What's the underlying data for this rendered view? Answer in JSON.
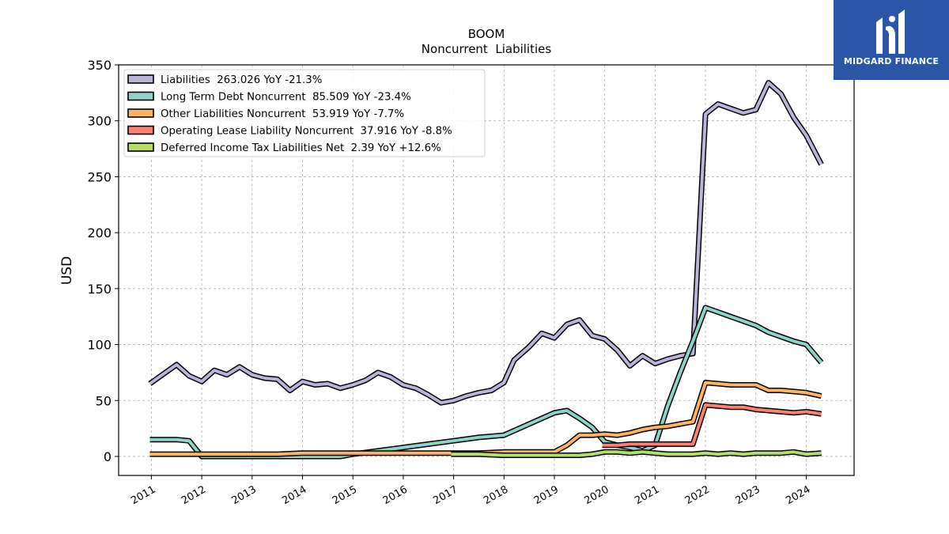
{
  "brand": {
    "name": "MIDGARD FINANCE",
    "bg_color": "#2b56a8"
  },
  "chart_data": {
    "type": "line",
    "title": "BOOM",
    "subtitle": "Noncurrent  Liabilities",
    "ylabel": "USD",
    "xlabel": "",
    "ylim": [
      -17,
      350
    ],
    "xlim": [
      2010.35,
      2024.95
    ],
    "yticks": [
      0,
      50,
      100,
      150,
      200,
      250,
      300,
      350
    ],
    "xticks": [
      2011,
      2012,
      2013,
      2014,
      2015,
      2016,
      2017,
      2018,
      2019,
      2020,
      2021,
      2022,
      2023,
      2024
    ],
    "grid": true,
    "legend_position": "top-left",
    "series": [
      {
        "name": "Liabilities  263.026 YoY -21.3%",
        "color": "#bcb3da",
        "points": [
          [
            2010.97,
            65
          ],
          [
            2011.25,
            74
          ],
          [
            2011.5,
            82
          ],
          [
            2011.75,
            72
          ],
          [
            2012.0,
            67
          ],
          [
            2012.25,
            77
          ],
          [
            2012.5,
            73
          ],
          [
            2012.75,
            80
          ],
          [
            2013.0,
            73
          ],
          [
            2013.25,
            70
          ],
          [
            2013.5,
            69
          ],
          [
            2013.75,
            59
          ],
          [
            2014.0,
            67
          ],
          [
            2014.25,
            64
          ],
          [
            2014.5,
            65
          ],
          [
            2014.75,
            61
          ],
          [
            2015.0,
            64
          ],
          [
            2015.25,
            68
          ],
          [
            2015.5,
            75
          ],
          [
            2015.75,
            71
          ],
          [
            2016.0,
            64
          ],
          [
            2016.25,
            61
          ],
          [
            2016.5,
            55
          ],
          [
            2016.75,
            48
          ],
          [
            2017.0,
            50
          ],
          [
            2017.25,
            54
          ],
          [
            2017.5,
            57
          ],
          [
            2017.75,
            59
          ],
          [
            2018.0,
            66
          ],
          [
            2018.2,
            86
          ],
          [
            2018.5,
            98
          ],
          [
            2018.75,
            110
          ],
          [
            2019.0,
            106
          ],
          [
            2019.25,
            118
          ],
          [
            2019.5,
            122
          ],
          [
            2019.75,
            108
          ],
          [
            2020.0,
            105
          ],
          [
            2020.25,
            95
          ],
          [
            2020.5,
            81
          ],
          [
            2020.75,
            90
          ],
          [
            2021.0,
            83
          ],
          [
            2021.25,
            87
          ],
          [
            2021.5,
            90
          ],
          [
            2021.75,
            92
          ],
          [
            2022.0,
            306
          ],
          [
            2022.25,
            315
          ],
          [
            2022.5,
            311
          ],
          [
            2022.75,
            307
          ],
          [
            2023.0,
            310
          ],
          [
            2023.25,
            334
          ],
          [
            2023.5,
            324
          ],
          [
            2023.75,
            303
          ],
          [
            2024.0,
            287
          ],
          [
            2024.3,
            261
          ]
        ]
      },
      {
        "name": "Long Term Debt Noncurrent  85.509 YoY -23.4%",
        "color": "#8dd3c7",
        "points": [
          [
            2010.97,
            15
          ],
          [
            2011.25,
            15
          ],
          [
            2011.5,
            15
          ],
          [
            2011.75,
            14
          ],
          [
            2012.0,
            0
          ],
          [
            2012.5,
            0
          ],
          [
            2013.0,
            0
          ],
          [
            2013.5,
            0
          ],
          [
            2014.0,
            0
          ],
          [
            2014.5,
            0
          ],
          [
            2014.75,
            0
          ],
          [
            2015.0,
            2
          ],
          [
            2015.5,
            5
          ],
          [
            2016.0,
            8
          ],
          [
            2016.5,
            11
          ],
          [
            2017.0,
            14
          ],
          [
            2017.5,
            17
          ],
          [
            2018.0,
            19
          ],
          [
            2018.5,
            29
          ],
          [
            2019.0,
            39
          ],
          [
            2019.25,
            41
          ],
          [
            2019.5,
            34
          ],
          [
            2019.75,
            26
          ],
          [
            2020.0,
            13
          ],
          [
            2020.25,
            10
          ],
          [
            2020.5,
            8
          ],
          [
            2020.75,
            5
          ],
          [
            2021.0,
            10
          ],
          [
            2021.25,
            45
          ],
          [
            2021.5,
            75
          ],
          [
            2021.75,
            103
          ],
          [
            2022.0,
            133
          ],
          [
            2022.25,
            129
          ],
          [
            2022.5,
            125
          ],
          [
            2022.75,
            121
          ],
          [
            2023.0,
            117
          ],
          [
            2023.25,
            111
          ],
          [
            2023.5,
            107
          ],
          [
            2023.75,
            103
          ],
          [
            2024.0,
            100
          ],
          [
            2024.3,
            84
          ]
        ]
      },
      {
        "name": "Other Liabilities Noncurrent  53.919 YoY -7.7%",
        "color": "#fdb462",
        "points": [
          [
            2010.97,
            2
          ],
          [
            2011.5,
            2
          ],
          [
            2012.0,
            2
          ],
          [
            2012.5,
            2
          ],
          [
            2013.0,
            2
          ],
          [
            2013.5,
            2
          ],
          [
            2014.0,
            3
          ],
          [
            2014.5,
            3
          ],
          [
            2015.0,
            3
          ],
          [
            2015.5,
            3
          ],
          [
            2016.0,
            3
          ],
          [
            2016.5,
            3
          ],
          [
            2017.0,
            3
          ],
          [
            2017.5,
            3
          ],
          [
            2018.0,
            4
          ],
          [
            2018.5,
            4
          ],
          [
            2019.0,
            4
          ],
          [
            2019.25,
            10
          ],
          [
            2019.5,
            19
          ],
          [
            2019.75,
            19
          ],
          [
            2020.0,
            20
          ],
          [
            2020.25,
            19
          ],
          [
            2020.5,
            21
          ],
          [
            2020.75,
            24
          ],
          [
            2021.0,
            26
          ],
          [
            2021.25,
            27
          ],
          [
            2021.5,
            29
          ],
          [
            2021.75,
            31
          ],
          [
            2022.0,
            66
          ],
          [
            2022.25,
            65
          ],
          [
            2022.5,
            64
          ],
          [
            2022.75,
            64
          ],
          [
            2023.0,
            64
          ],
          [
            2023.25,
            59
          ],
          [
            2023.5,
            59
          ],
          [
            2023.75,
            58
          ],
          [
            2024.0,
            57
          ],
          [
            2024.3,
            54
          ]
        ]
      },
      {
        "name": "Operating Lease Liability Noncurrent  37.916 YoY -8.8%",
        "color": "#fb8072",
        "points": [
          [
            2019.95,
            10
          ],
          [
            2020.25,
            10
          ],
          [
            2020.5,
            11
          ],
          [
            2020.75,
            11
          ],
          [
            2021.0,
            11
          ],
          [
            2021.25,
            11
          ],
          [
            2021.5,
            11
          ],
          [
            2021.75,
            11
          ],
          [
            2022.0,
            46
          ],
          [
            2022.25,
            45
          ],
          [
            2022.5,
            44
          ],
          [
            2022.75,
            44
          ],
          [
            2023.0,
            42
          ],
          [
            2023.25,
            41
          ],
          [
            2023.5,
            40
          ],
          [
            2023.75,
            39
          ],
          [
            2024.0,
            40
          ],
          [
            2024.3,
            38
          ]
        ]
      },
      {
        "name": "Deferred Income Tax Liabilities Net  2.39 YoY +12.6%",
        "color": "#b3de69",
        "points": [
          [
            2016.95,
            2
          ],
          [
            2017.5,
            2
          ],
          [
            2018.0,
            1
          ],
          [
            2018.5,
            1
          ],
          [
            2019.0,
            1
          ],
          [
            2019.5,
            1
          ],
          [
            2019.75,
            2
          ],
          [
            2020.0,
            4
          ],
          [
            2020.25,
            4
          ],
          [
            2020.5,
            3
          ],
          [
            2020.75,
            4
          ],
          [
            2021.0,
            3
          ],
          [
            2021.25,
            2
          ],
          [
            2021.5,
            2
          ],
          [
            2021.75,
            2
          ],
          [
            2022.0,
            3
          ],
          [
            2022.25,
            2
          ],
          [
            2022.5,
            3
          ],
          [
            2022.75,
            2
          ],
          [
            2023.0,
            3
          ],
          [
            2023.25,
            3
          ],
          [
            2023.5,
            3
          ],
          [
            2023.75,
            4
          ],
          [
            2024.0,
            2
          ],
          [
            2024.3,
            3
          ]
        ]
      }
    ]
  }
}
